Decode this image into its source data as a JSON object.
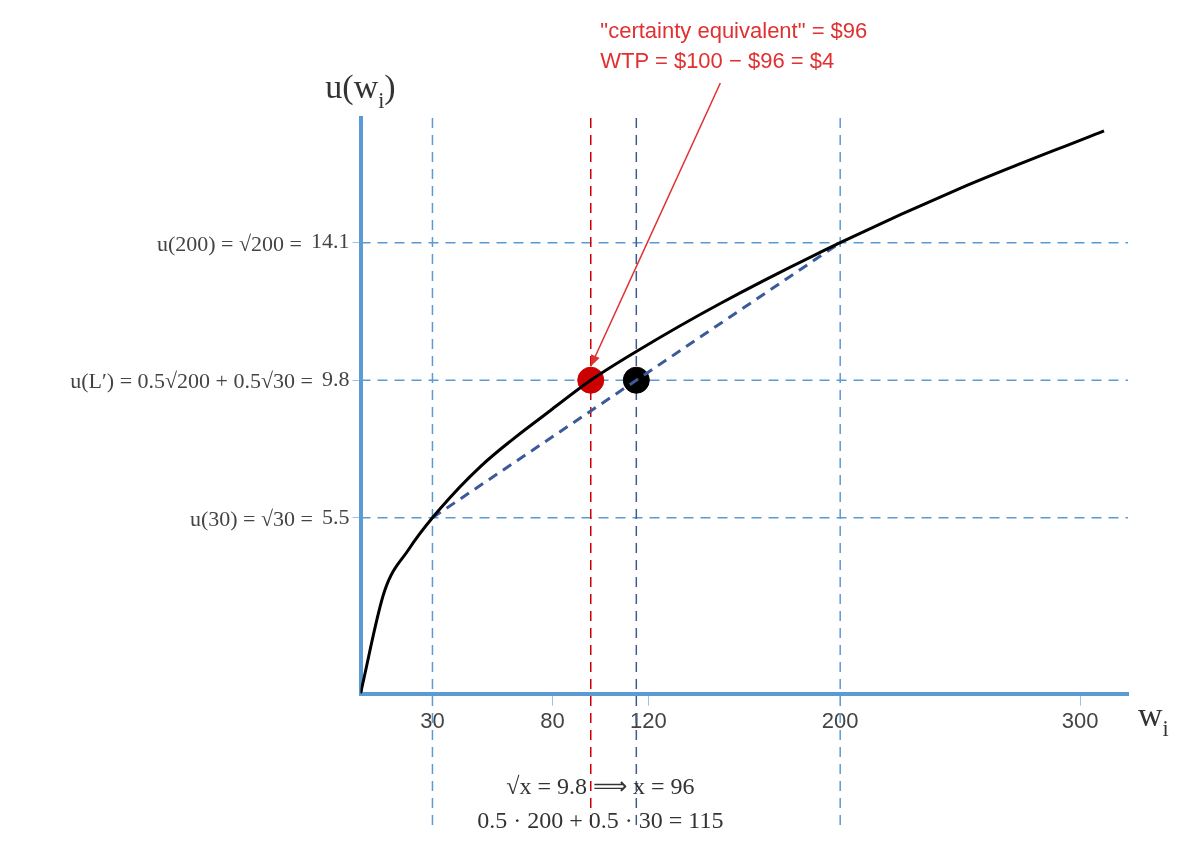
{
  "chart_data": {
    "type": "line",
    "xlabel": "w$_{i}$",
    "ylabel": "u(w$_{i}$)",
    "xlim": [
      0,
      320
    ],
    "xticks": [
      30,
      80,
      120,
      200,
      300
    ],
    "ylim": [
      0,
      18
    ],
    "yticks": [
      5.5,
      9.8,
      14.1
    ],
    "series": [
      {
        "type": "line",
        "color": "#000000",
        "x": [
          0,
          10,
          20,
          30,
          50,
          80,
          96,
          115,
          150,
          200,
          250,
          310
        ],
        "values": [
          0,
          3.2,
          4.5,
          5.5,
          7.1,
          8.9,
          9.8,
          10.7,
          12.2,
          14.1,
          15.8,
          17.6
        ],
        "marker": "none",
        "line_style": "solid"
      },
      {
        "type": "line",
        "color": "#3a5a9a",
        "x": [
          30,
          200
        ],
        "values": [
          5.5,
          14.1
        ],
        "marker": "none",
        "line_style": "dashed"
      },
      {
        "type": "scatter",
        "color": "#cc0000",
        "x": [
          96
        ],
        "values": [
          9.8
        ],
        "marker": "circle"
      },
      {
        "type": "scatter",
        "color": "#000000",
        "x": [
          115
        ],
        "values": [
          9.8
        ],
        "marker": "circle"
      }
    ],
    "ref_lines": [
      {
        "axis": "y",
        "value": 5.5,
        "color": "#5b9bd5",
        "line_style": "dashed"
      },
      {
        "axis": "y",
        "value": 9.8,
        "color": "#5b9bd5",
        "line_style": "dashed"
      },
      {
        "axis": "y",
        "value": 14.1,
        "color": "#5b9bd5",
        "line_style": "dashed"
      },
      {
        "axis": "x",
        "value": 30,
        "color": "#5b9bd5",
        "line_style": "dashed"
      },
      {
        "axis": "x",
        "value": 200,
        "color": "#5b9bd5",
        "line_style": "dashed"
      },
      {
        "axis": "x",
        "value": 96,
        "color": "#cc0000",
        "line_style": "dashed"
      },
      {
        "axis": "x",
        "value": 115,
        "color": "#3a5a9a",
        "line_style": "dashed"
      }
    ],
    "annotations": [
      "u(30) = √30 =",
      "u(L′) = 0.5√200 + 0.5√30 =",
      "u(200) = √200 =",
      "\"certainty equivalent\" = $96\nWTP = $100 − $96 = $4",
      "√x = 9.8 ⟹ x = 96",
      "0.5 · 200 + 0.5 · 30 = 115"
    ],
    "grid": false,
    "legend": false
  }
}
